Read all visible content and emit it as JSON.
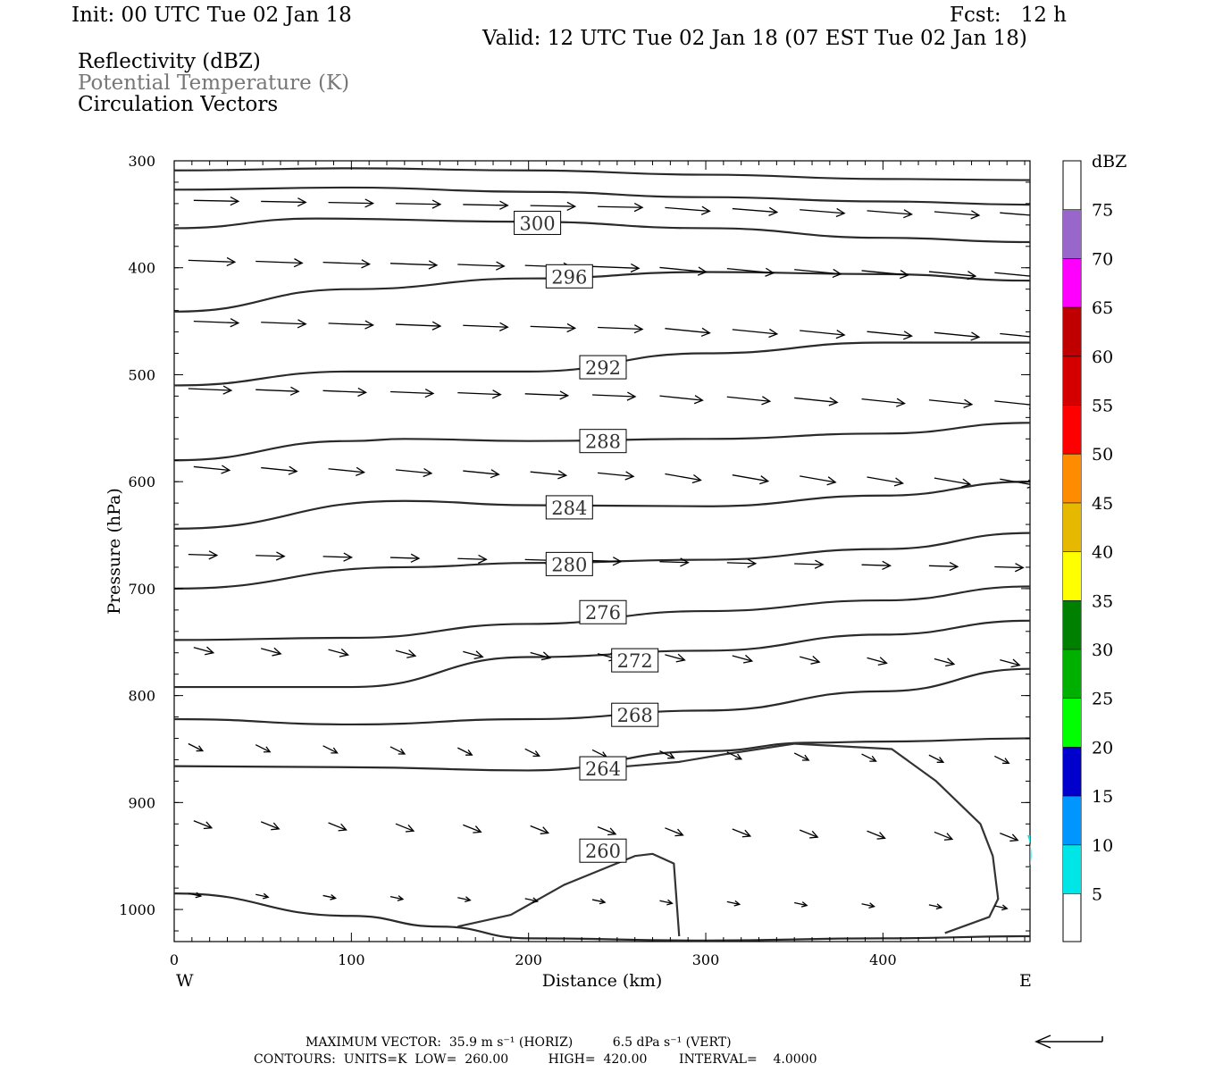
{
  "header": {
    "init": "Init: 00 UTC Tue 02 Jan 18",
    "fcst": "Fcst:   12 h",
    "valid": "Valid: 12 UTC Tue 02 Jan 18 (07 EST Tue 02 Jan 18)",
    "fields": [
      "Reflectivity (dBZ)",
      "Potential Temperature (K)",
      "Circulation Vectors"
    ]
  },
  "chart_data": {
    "type": "contour",
    "xlabel": "Distance (km)",
    "ylabel": "Pressure (hPa)",
    "xlim": [
      0,
      483
    ],
    "ylim": [
      300,
      1030
    ],
    "y_inverted": true,
    "xticks": [
      0,
      100,
      200,
      300,
      400
    ],
    "yticks": [
      300,
      400,
      500,
      600,
      700,
      800,
      900,
      1000
    ],
    "x_end_labels": {
      "left": "W",
      "right": "E"
    },
    "contour_units": "K",
    "contour_low": 260.0,
    "contour_high": 420.0,
    "contour_interval": 4.0,
    "contour_labels": [
      {
        "text": "300",
        "x": 205,
        "p": 358
      },
      {
        "text": "296",
        "x": 223,
        "p": 408
      },
      {
        "text": "292",
        "x": 242,
        "p": 493
      },
      {
        "text": "288",
        "x": 242,
        "p": 562
      },
      {
        "text": "284",
        "x": 223,
        "p": 624
      },
      {
        "text": "280",
        "x": 223,
        "p": 677
      },
      {
        "text": "276",
        "x": 242,
        "p": 722
      },
      {
        "text": "272",
        "x": 260,
        "p": 767
      },
      {
        "text": "268",
        "x": 260,
        "p": 818
      },
      {
        "text": "264",
        "x": 242,
        "p": 868
      },
      {
        "text": "260",
        "x": 242,
        "p": 945
      }
    ],
    "isentropes": [
      [
        [
          0,
          309
        ],
        [
          100,
          307
        ],
        [
          200,
          309
        ],
        [
          300,
          313
        ],
        [
          400,
          317
        ],
        [
          483,
          318
        ]
      ],
      [
        [
          0,
          327
        ],
        [
          100,
          325
        ],
        [
          200,
          329
        ],
        [
          300,
          334
        ],
        [
          400,
          338
        ],
        [
          483,
          341
        ]
      ],
      [
        [
          0,
          363
        ],
        [
          80,
          354
        ],
        [
          200,
          357
        ],
        [
          300,
          363
        ],
        [
          400,
          372
        ],
        [
          483,
          376
        ]
      ],
      [
        [
          0,
          441
        ],
        [
          100,
          420
        ],
        [
          200,
          410
        ],
        [
          300,
          404
        ],
        [
          400,
          406
        ],
        [
          483,
          412
        ]
      ],
      [
        [
          0,
          510
        ],
        [
          100,
          497
        ],
        [
          200,
          497
        ],
        [
          300,
          480
        ],
        [
          400,
          470
        ],
        [
          483,
          470
        ]
      ],
      [
        [
          0,
          580
        ],
        [
          100,
          562
        ],
        [
          130,
          560
        ],
        [
          200,
          562
        ],
        [
          300,
          560
        ],
        [
          400,
          555
        ],
        [
          483,
          545
        ]
      ],
      [
        [
          0,
          644
        ],
        [
          130,
          618
        ],
        [
          200,
          622
        ],
        [
          300,
          623
        ],
        [
          400,
          613
        ],
        [
          483,
          600
        ]
      ],
      [
        [
          0,
          700
        ],
        [
          130,
          680
        ],
        [
          200,
          676
        ],
        [
          300,
          673
        ],
        [
          400,
          663
        ],
        [
          483,
          648
        ]
      ],
      [
        [
          0,
          748
        ],
        [
          100,
          746
        ],
        [
          200,
          733
        ],
        [
          300,
          721
        ],
        [
          400,
          711
        ],
        [
          483,
          698
        ]
      ],
      [
        [
          0,
          792
        ],
        [
          100,
          792
        ],
        [
          200,
          764
        ],
        [
          300,
          758
        ],
        [
          400,
          743
        ],
        [
          483,
          730
        ]
      ],
      [
        [
          0,
          822
        ],
        [
          100,
          827
        ],
        [
          200,
          822
        ],
        [
          300,
          814
        ],
        [
          400,
          796
        ],
        [
          483,
          775
        ]
      ],
      [
        [
          0,
          866
        ],
        [
          100,
          867
        ],
        [
          200,
          870
        ],
        [
          300,
          852
        ],
        [
          360,
          844
        ],
        [
          400,
          843
        ],
        [
          483,
          840
        ]
      ],
      [
        [
          0,
          985
        ],
        [
          100,
          1006
        ],
        [
          150,
          1016
        ],
        [
          200,
          1027
        ],
        [
          300,
          1029
        ],
        [
          400,
          1027
        ],
        [
          483,
          1025
        ]
      ]
    ],
    "cold_pool_260": [
      [
        160,
        1016
      ],
      [
        190,
        1005
      ],
      [
        220,
        977
      ],
      [
        260,
        950
      ],
      [
        270,
        948
      ],
      [
        282,
        957
      ],
      [
        285,
        1025
      ]
    ],
    "cold_pool_264": [
      [
        435,
        1022
      ],
      [
        460,
        1007
      ],
      [
        465,
        990
      ],
      [
        462,
        950
      ],
      [
        455,
        920
      ],
      [
        430,
        880
      ],
      [
        405,
        850
      ],
      [
        350,
        845
      ],
      [
        310,
        855
      ],
      [
        285,
        862
      ],
      [
        242,
        868
      ]
    ],
    "circulation_vectors_note": "Rows of wind vectors pointing generally eastward; longest near upper levels",
    "reflectivity_colorbar": {
      "title": "dBZ",
      "labels": [
        "75",
        "70",
        "65",
        "60",
        "55",
        "50",
        "45",
        "40",
        "35",
        "30",
        "25",
        "20",
        "15",
        "10",
        "5"
      ],
      "colors": [
        "#9966cc",
        "#ff00ff",
        "#c00000",
        "#d40000",
        "#ff0000",
        "#ff8c00",
        "#e6b800",
        "#ffff00",
        "#008000",
        "#00b000",
        "#00ff00",
        "#0000cd",
        "#0096ff",
        "#00e5e5"
      ]
    }
  },
  "footer": {
    "max_vector": "MAXIMUM VECTOR:  35.9 m s⁻¹ (HORIZ)          6.5 dPa s⁻¹ (VERT)",
    "contours": "CONTOURS:  UNITS=K  LOW=  260.00          HIGH=  420.00        INTERVAL=    4.0000"
  }
}
